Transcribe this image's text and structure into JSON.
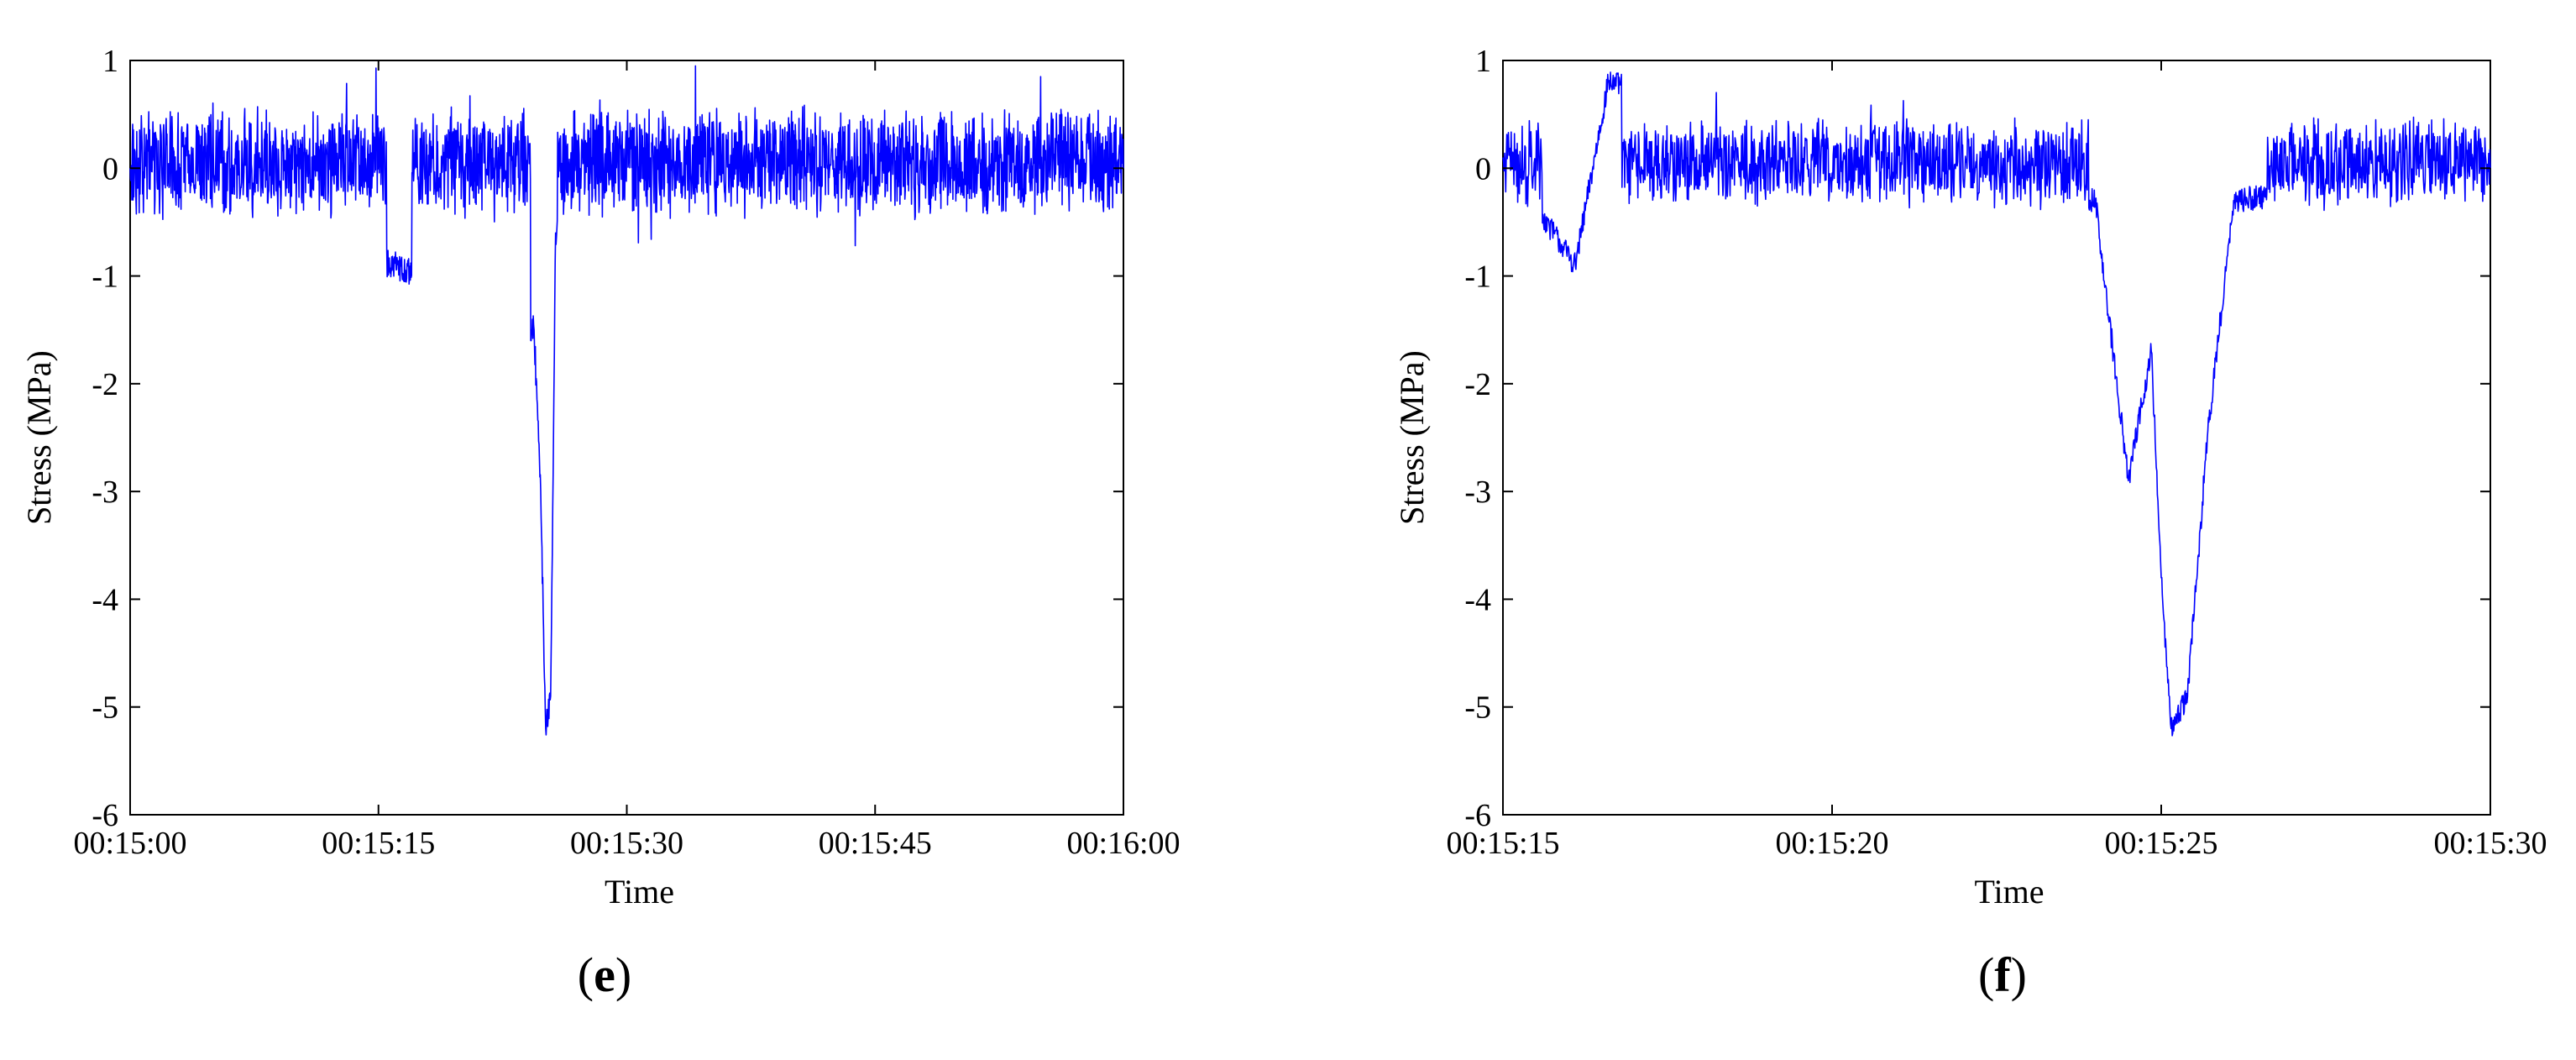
{
  "chart_data": [
    {
      "type": "line",
      "panel_label": "e",
      "xlabel": "Time",
      "ylabel": "Stress (MPa)",
      "x_tick_labels": [
        "00:15:00",
        "00:15:15",
        "00:15:30",
        "00:15:45",
        "00:16:00"
      ],
      "x_ticks_seconds": [
        0,
        15,
        30,
        45,
        60
      ],
      "xlim_seconds": [
        0,
        60
      ],
      "y_ticks": [
        1,
        0,
        -1,
        -2,
        -3,
        -4,
        -5,
        -6
      ],
      "y_tick_labels": [
        "1",
        "0",
        "-1",
        "-2",
        "-3",
        "-4",
        "-5",
        "-6"
      ],
      "ylim": [
        -6,
        1
      ],
      "grid": false,
      "color": "#0000ff",
      "baseline_mean": 0.05,
      "baseline_noise": 0.55,
      "features": [
        {
          "t": [
            15.5,
            17.0
          ],
          "depth": -0.95,
          "note": "small dip"
        },
        {
          "t": [
            24.2,
            25.8
          ],
          "depth": -5.2,
          "note": "main stress drop"
        }
      ],
      "key_points": [
        {
          "x": 0.0,
          "y": 0.0
        },
        {
          "x": 15.9,
          "y": -0.9
        },
        {
          "x": 24.4,
          "y": -1.5
        },
        {
          "x": 24.8,
          "y": -3.0
        },
        {
          "x": 25.1,
          "y": -5.2
        },
        {
          "x": 25.4,
          "y": -4.9
        },
        {
          "x": 25.7,
          "y": -0.6
        },
        {
          "x": 55.0,
          "y": 0.85
        },
        {
          "x": 60.0,
          "y": 0.0
        }
      ]
    },
    {
      "type": "line",
      "panel_label": "f",
      "xlabel": "Time",
      "ylabel": "Stress (MPa)",
      "x_tick_labels": [
        "00:15:15",
        "00:15:20",
        "00:15:25",
        "00:15:30"
      ],
      "x_ticks_seconds": [
        15,
        20,
        25,
        30
      ],
      "xlim_seconds": [
        15,
        30
      ],
      "y_ticks": [
        1,
        0,
        -1,
        -2,
        -3,
        -4,
        -5,
        -6
      ],
      "y_tick_labels": [
        "1",
        "0",
        "-1",
        "-2",
        "-3",
        "-4",
        "-5",
        "-6"
      ],
      "ylim": [
        -6,
        1
      ],
      "grid": false,
      "color": "#0000ff",
      "baseline_mean": 0.05,
      "baseline_noise": 0.45,
      "features": [
        {
          "t": [
            15.6,
            16.8
          ],
          "depth": -0.9,
          "note": "small dip"
        },
        {
          "t": [
            23.9,
            26.6
          ],
          "depth": -5.2,
          "note": "main stress drop"
        }
      ],
      "key_points": [
        {
          "x": 15.0,
          "y": 0.1
        },
        {
          "x": 16.1,
          "y": -0.9
        },
        {
          "x": 16.6,
          "y": 0.8
        },
        {
          "x": 24.0,
          "y": -0.3
        },
        {
          "x": 24.5,
          "y": -2.9
        },
        {
          "x": 24.85,
          "y": -1.7
        },
        {
          "x": 25.0,
          "y": -3.8
        },
        {
          "x": 25.15,
          "y": -5.2
        },
        {
          "x": 25.4,
          "y": -4.9
        },
        {
          "x": 25.7,
          "y": -2.5
        },
        {
          "x": 26.1,
          "y": -0.3
        },
        {
          "x": 30.0,
          "y": 0.0
        }
      ]
    }
  ]
}
